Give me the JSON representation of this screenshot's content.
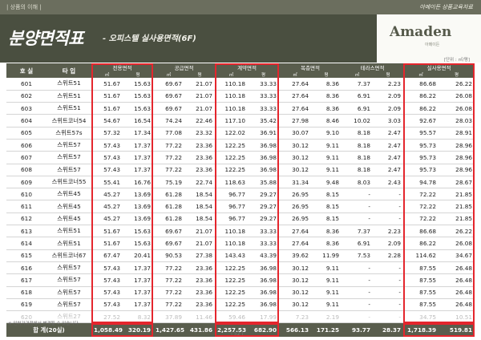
{
  "header": {
    "left_label": "| 상품의 이해 |",
    "right_label": "아메이든 상품교육자료",
    "title": "분양면적표",
    "subtitle": "- 오피스텔 실사용면적(6F)",
    "logo": "Amaden",
    "logo_sub": "아메이든"
  },
  "unit_note": "[단위 : ㎡/평]",
  "columns": {
    "room": "호 실",
    "type": "타 입",
    "groups": [
      "전용면적",
      "공급면적",
      "계약면적",
      "복층면적",
      "테라스면적",
      "실사용면적"
    ],
    "sub": [
      "㎡",
      "평"
    ]
  },
  "rows": [
    {
      "room": "601",
      "type": "스위트51",
      "v": [
        "51.67",
        "15.63",
        "69.67",
        "21.07",
        "110.18",
        "33.33",
        "27.64",
        "8.36",
        "7.37",
        "2.23",
        "86.68",
        "26.22"
      ],
      "dim": false
    },
    {
      "room": "602",
      "type": "스위트51",
      "v": [
        "51.67",
        "15.63",
        "69.67",
        "21.07",
        "110.18",
        "33.33",
        "27.64",
        "8.36",
        "6.91",
        "2.09",
        "86.22",
        "26.08"
      ],
      "dim": false
    },
    {
      "room": "603",
      "type": "스위트51",
      "v": [
        "51.67",
        "15.63",
        "69.67",
        "21.07",
        "110.18",
        "33.33",
        "27.64",
        "8.36",
        "6.91",
        "2.09",
        "86.22",
        "26.08"
      ],
      "dim": false
    },
    {
      "room": "604",
      "type": "스위트코너54",
      "v": [
        "54.67",
        "16.54",
        "74.24",
        "22.46",
        "117.10",
        "35.42",
        "27.98",
        "8.46",
        "10.02",
        "3.03",
        "92.67",
        "28.03"
      ],
      "dim": false
    },
    {
      "room": "605",
      "type": "스위트57s",
      "v": [
        "57.32",
        "17.34",
        "77.08",
        "23.32",
        "122.02",
        "36.91",
        "30.07",
        "9.10",
        "8.18",
        "2.47",
        "95.57",
        "28.91"
      ],
      "dim": false
    },
    {
      "room": "606",
      "type": "스위트57",
      "v": [
        "57.43",
        "17.37",
        "77.22",
        "23.36",
        "122.25",
        "36.98",
        "30.12",
        "9.11",
        "8.18",
        "2.47",
        "95.73",
        "28.96"
      ],
      "dim": false
    },
    {
      "room": "607",
      "type": "스위트57",
      "v": [
        "57.43",
        "17.37",
        "77.22",
        "23.36",
        "122.25",
        "36.98",
        "30.12",
        "9.11",
        "8.18",
        "2.47",
        "95.73",
        "28.96"
      ],
      "dim": false
    },
    {
      "room": "608",
      "type": "스위트57",
      "v": [
        "57.43",
        "17.37",
        "77.22",
        "23.36",
        "122.25",
        "36.98",
        "30.12",
        "9.11",
        "8.18",
        "2.47",
        "95.73",
        "28.96"
      ],
      "dim": false
    },
    {
      "room": "609",
      "type": "스위트코너55",
      "v": [
        "55.41",
        "16.76",
        "75.19",
        "22.74",
        "118.63",
        "35.88",
        "31.34",
        "9.48",
        "8.03",
        "2.43",
        "94.78",
        "28.67"
      ],
      "dim": false
    },
    {
      "room": "610",
      "type": "스위트45",
      "v": [
        "45.27",
        "13.69",
        "61.28",
        "18.54",
        "96.77",
        "29.27",
        "26.95",
        "8.15",
        "-",
        "-",
        "72.22",
        "21.85"
      ],
      "dim": false
    },
    {
      "room": "611",
      "type": "스위트45",
      "v": [
        "45.27",
        "13.69",
        "61.28",
        "18.54",
        "96.77",
        "29.27",
        "26.95",
        "8.15",
        "-",
        "-",
        "72.22",
        "21.85"
      ],
      "dim": false
    },
    {
      "room": "612",
      "type": "스위트45",
      "v": [
        "45.27",
        "13.69",
        "61.28",
        "18.54",
        "96.77",
        "29.27",
        "26.95",
        "8.15",
        "-",
        "-",
        "72.22",
        "21.85"
      ],
      "dim": false
    },
    {
      "room": "613",
      "type": "스위트51",
      "v": [
        "51.67",
        "15.63",
        "69.67",
        "21.07",
        "110.18",
        "33.33",
        "27.64",
        "8.36",
        "7.37",
        "2.23",
        "86.68",
        "26.22"
      ],
      "dim": false
    },
    {
      "room": "614",
      "type": "스위트51",
      "v": [
        "51.67",
        "15.63",
        "69.67",
        "21.07",
        "110.18",
        "33.33",
        "27.64",
        "8.36",
        "6.91",
        "2.09",
        "86.22",
        "26.08"
      ],
      "dim": false
    },
    {
      "room": "615",
      "type": "스위트코너67",
      "v": [
        "67.47",
        "20.41",
        "90.53",
        "27.38",
        "143.43",
        "43.39",
        "39.62",
        "11.99",
        "7.53",
        "2.28",
        "114.62",
        "34.67"
      ],
      "dim": false
    },
    {
      "room": "616",
      "type": "스위트57",
      "v": [
        "57.43",
        "17.37",
        "77.22",
        "23.36",
        "122.25",
        "36.98",
        "30.12",
        "9.11",
        "-",
        "-",
        "87.55",
        "26.48"
      ],
      "dim": false
    },
    {
      "room": "617",
      "type": "스위트57",
      "v": [
        "57.43",
        "17.37",
        "77.22",
        "23.36",
        "122.25",
        "36.98",
        "30.12",
        "9.11",
        "-",
        "-",
        "87.55",
        "26.48"
      ],
      "dim": false
    },
    {
      "room": "618",
      "type": "스위트57",
      "v": [
        "57.43",
        "17.37",
        "77.22",
        "23.36",
        "122.25",
        "36.98",
        "30.12",
        "9.11",
        "-",
        "-",
        "87.55",
        "26.48"
      ],
      "dim": false
    },
    {
      "room": "619",
      "type": "스위트57",
      "v": [
        "57.43",
        "17.37",
        "77.22",
        "23.36",
        "122.25",
        "36.98",
        "30.12",
        "9.11",
        "-",
        "-",
        "87.55",
        "26.48"
      ],
      "dim": false
    },
    {
      "room": "620",
      "type": "스위트27",
      "v": [
        "27.52",
        "8.32",
        "37.89",
        "11.46",
        "59.46",
        "17.99",
        "7.23",
        "2.19",
        "-",
        "-",
        "34.75",
        "10.51"
      ],
      "dim": true
    }
  ],
  "total": {
    "label": "합 계(20실)",
    "v": [
      "1,058.49",
      "320.19",
      "1,427.65",
      "431.86",
      "2,257.53",
      "682.90",
      "566.13",
      "171.25",
      "93.77",
      "28.37",
      "1,718.39",
      "519.81"
    ]
  },
  "footnote": "※ 인허가과정에서 변경될 수 있습니다.",
  "page_number": "| 52 |",
  "colors": {
    "header_bg": "#595d4d",
    "hero_bg": "#4a4f40",
    "highlight": "#e4262d"
  }
}
